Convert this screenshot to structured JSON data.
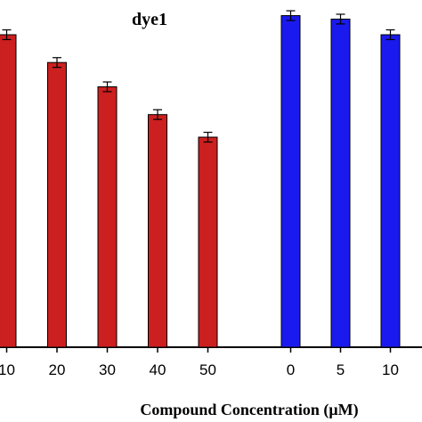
{
  "chart_data": {
    "type": "bar",
    "title": "dye1",
    "xlabel": "Compound Concentration (μM)",
    "ylabel": "",
    "ylim": [
      0,
      100
    ],
    "grid": false,
    "groups": [
      {
        "color": "#cc1f1f",
        "categories": [
          "10",
          "20",
          "30",
          "40",
          "50"
        ],
        "values": [
          90.0,
          82.0,
          75.0,
          67.0,
          60.5
        ],
        "errors": [
          1.4,
          1.4,
          1.4,
          1.4,
          1.4
        ]
      },
      {
        "color": "#1a1aee",
        "categories": [
          "0",
          "5",
          "10"
        ],
        "values": [
          95.5,
          94.5,
          90.0
        ],
        "errors": [
          1.4,
          1.4,
          1.4
        ]
      }
    ]
  }
}
